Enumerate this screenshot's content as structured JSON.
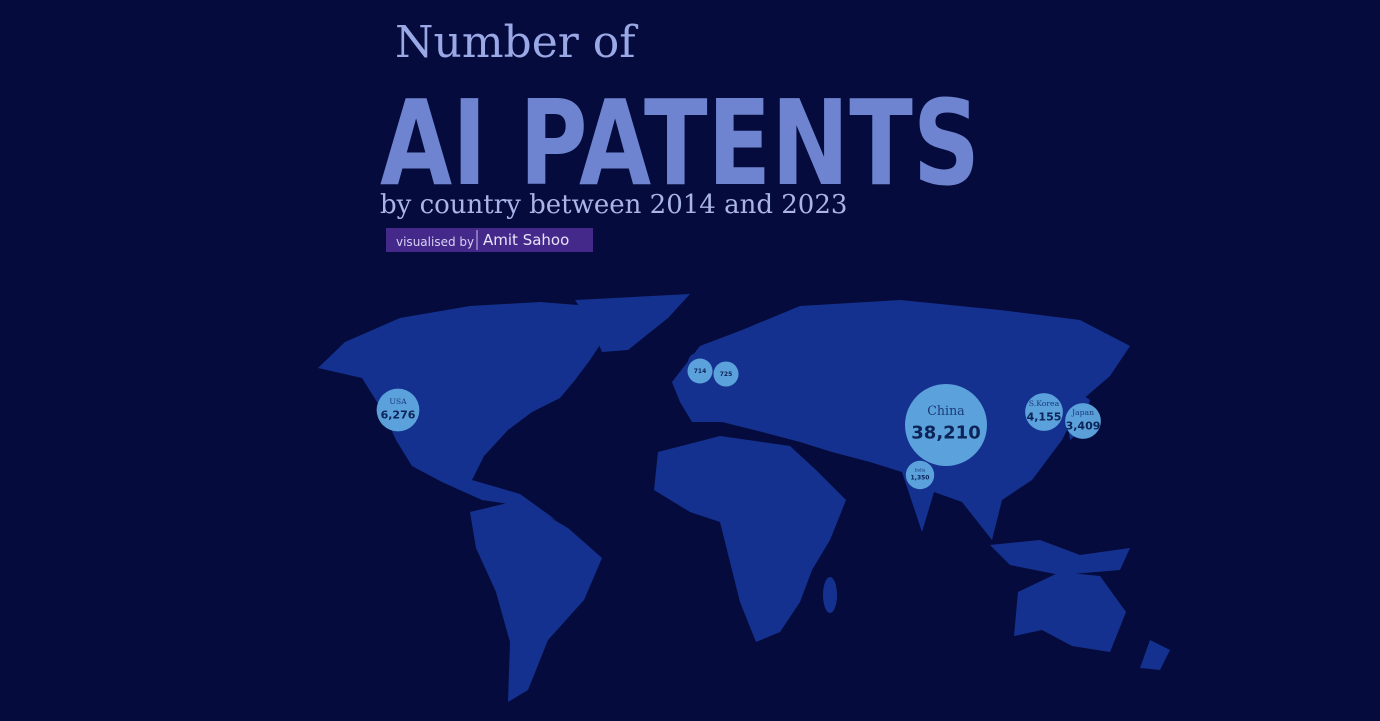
{
  "chart_data": {
    "type": "bubble-map",
    "title_lines": [
      "Number of",
      "AI PATENTS"
    ],
    "subtitle": "by country between 2014 and 2023",
    "credit_label": "visualised by",
    "credit_name": "Amit Sahoo",
    "categories": [
      "USA",
      "China",
      "S.Korea",
      "Japan",
      "India",
      null,
      null
    ],
    "values": [
      6276,
      38210,
      4155,
      3409,
      1350,
      714,
      725
    ],
    "value_labels": [
      "6,276",
      "38,210",
      "4,155",
      "3,409",
      "1,350",
      "714",
      "725"
    ],
    "color": "#5fa8e0",
    "land_color": "#15318f"
  }
}
